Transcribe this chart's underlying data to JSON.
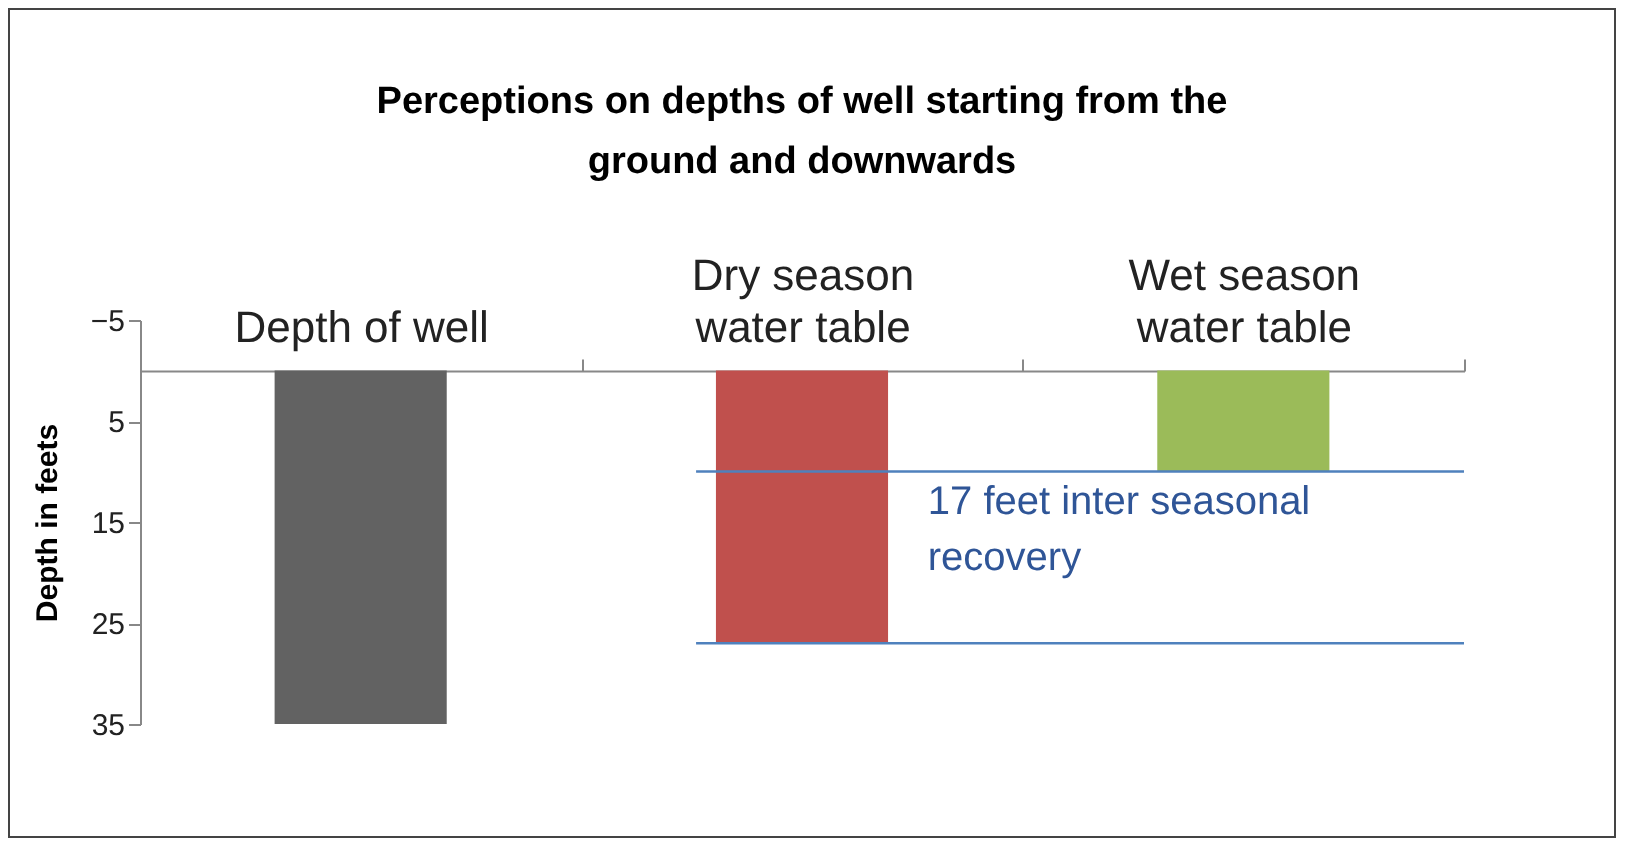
{
  "chart_data": {
    "type": "bar",
    "title": "Perceptions on depths of well starting from the ground and downwards",
    "ylabel": "Depth in feets",
    "categories": [
      "Depth of well",
      "Dry season water table",
      "Wet season water table"
    ],
    "values": [
      35,
      27,
      10
    ],
    "colors": [
      "#626262",
      "#c0504d",
      "#9bbb59"
    ],
    "ylim": [
      35,
      -5
    ],
    "yticks": [
      -5,
      5,
      15,
      25,
      35
    ],
    "grid": false,
    "legend": false,
    "ref_lines": [
      {
        "axis": "y",
        "value": 10,
        "color": "#4f81bd"
      },
      {
        "axis": "y",
        "value": 27,
        "color": "#4f81bd"
      }
    ],
    "annotations": [
      "17 feet inter seasonal recovery"
    ]
  }
}
